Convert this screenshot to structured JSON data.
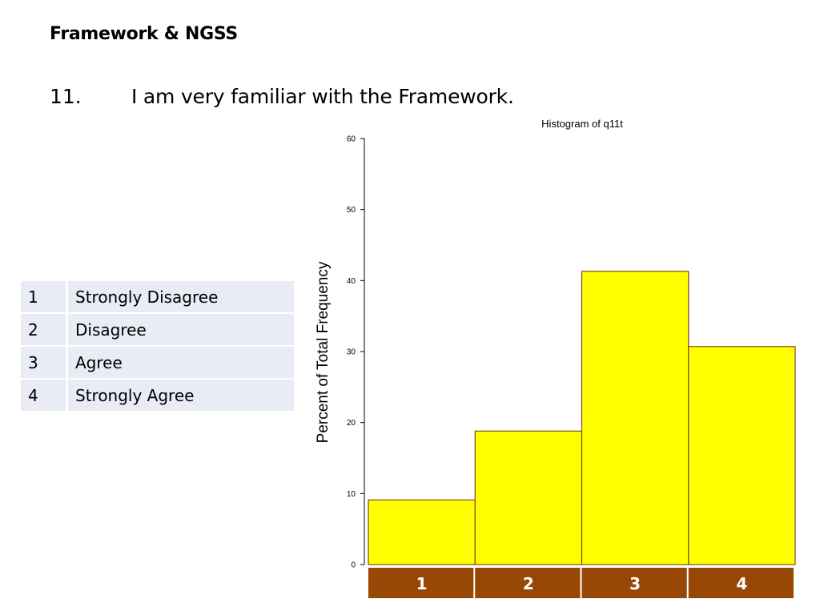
{
  "slide": {
    "title": "Framework & NGSS",
    "question_number": "11.",
    "question_text": "I am very familiar with the Framework."
  },
  "scale_legend": [
    {
      "value": "1",
      "label": "Strongly Disagree"
    },
    {
      "value": "2",
      "label": "Disagree"
    },
    {
      "value": "3",
      "label": "Agree"
    },
    {
      "value": "4",
      "label": "Strongly Agree"
    }
  ],
  "colors": {
    "bar_fill": "#ffff00",
    "bar_stroke": "#8b4513",
    "category_band": "#974806",
    "legend_row": "#e9ebf5"
  },
  "chart_data": {
    "type": "bar",
    "title": "Histogram of q11t",
    "xlabel": "",
    "ylabel": "Percent of Total Frequency",
    "categories": [
      "1",
      "2",
      "3",
      "4"
    ],
    "values": [
      9.1,
      18.8,
      41.3,
      30.7
    ],
    "ylim": [
      0,
      60
    ],
    "yticks": [
      0,
      10,
      20,
      30,
      40,
      50,
      60
    ],
    "grid": false
  }
}
